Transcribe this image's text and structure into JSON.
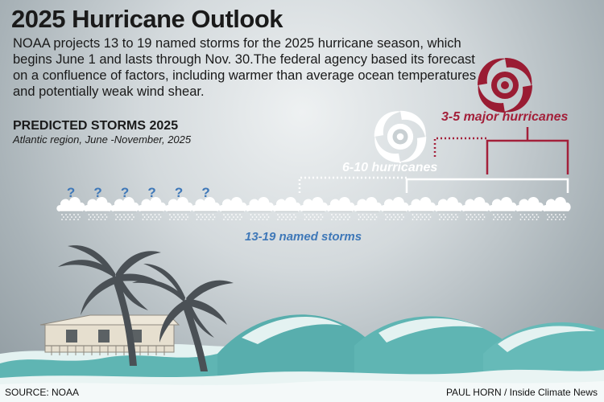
{
  "title": "2025 Hurricane Outlook",
  "description": "NOAA projects 13 to 19 named storms for the 2025 hurricane season, which begins June 1 and lasts through Nov. 30.The federal agency based its forecast on a confluence of factors, including warmer than average ocean temperatures and potentially weak wind shear.",
  "chart": {
    "heading": "PREDICTED STORMS 2025",
    "note": "Atlantic region, June -November, 2025",
    "question_mark": "?",
    "storm_icons_total": 19,
    "uncertain_storms": 6,
    "named_storms_label": "13-19 named storms",
    "hurricanes_label": "6-10 hurricanes",
    "major_hurricanes_label": "3-5 major hurricanes",
    "named_storms_range": [
      13,
      19
    ],
    "hurricanes_range": [
      6,
      10
    ],
    "major_hurricanes_range": [
      3,
      5
    ]
  },
  "colors": {
    "title_text": "#1a1a1a",
    "major_accent": "#a3203a",
    "named_accent": "#3f78b8",
    "bracket_white": "#ffffff",
    "sea": "#5fb5b3",
    "foam": "#e4f2f1"
  },
  "icons": [
    "storm-cloud-icon",
    "hurricane-spiral-icon",
    "major-hurricane-spiral-icon",
    "palm-tree-icon",
    "beach-house-icon"
  ],
  "footer": {
    "source": "SOURCE: NOAA",
    "credit": "PAUL HORN / Inside Climate News"
  }
}
